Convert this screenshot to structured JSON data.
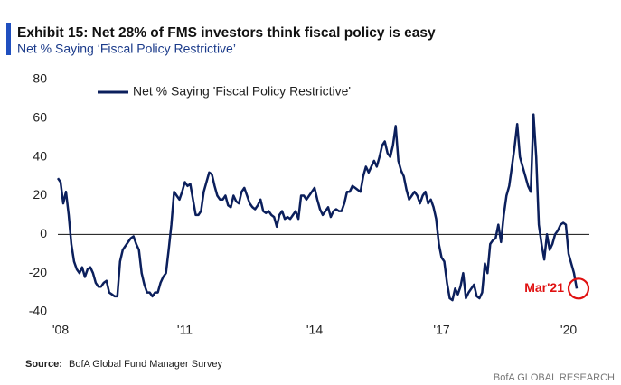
{
  "chart_data": {
    "type": "line",
    "title": "Exhibit 15: Net 28% of FMS investors think fiscal policy is easy",
    "subtitle": "Net % Saying ‘Fiscal Policy Restrictive’",
    "annotation": "Mar'21",
    "source_label": "Source:",
    "source": "BofA Global Fund Manager Survey",
    "footer": "BofA GLOBAL RESEARCH",
    "legend": "top-left",
    "ylim": [
      -40,
      80
    ],
    "yticks": [
      -40,
      -20,
      0,
      20,
      40,
      60,
      80
    ],
    "categories": [
      null,
      "'08",
      null,
      null,
      null,
      null,
      null,
      null,
      null,
      null,
      null,
      null,
      null,
      null,
      null,
      null,
      null,
      null,
      null,
      null,
      null,
      null,
      null,
      null,
      null,
      null,
      null,
      null,
      null,
      null,
      null,
      null,
      null,
      null,
      null,
      null,
      null,
      null,
      null,
      null,
      null,
      null,
      null,
      null,
      null,
      null,
      null,
      "'11",
      null,
      null,
      null,
      null,
      null,
      null,
      null,
      null,
      null,
      null,
      null,
      null,
      null,
      null,
      null,
      null,
      null,
      null,
      null,
      null,
      null,
      null,
      null,
      null,
      null,
      null,
      null,
      null,
      null,
      null,
      null,
      null,
      null,
      null,
      null,
      null,
      null,
      null,
      null,
      null,
      null,
      null,
      null,
      null,
      null,
      null,
      null,
      "'14",
      null,
      null,
      null,
      null,
      null,
      null,
      null,
      null,
      null,
      null,
      null,
      null,
      null,
      null,
      null,
      null,
      null,
      null,
      null,
      null,
      null,
      null,
      null,
      null,
      null,
      null,
      null,
      null,
      null,
      null,
      null,
      null,
      null,
      null,
      null,
      null,
      null,
      null,
      null,
      null,
      null,
      null,
      null,
      null,
      null,
      null,
      "'17",
      null,
      null,
      null,
      null,
      null,
      null,
      null,
      null,
      null,
      null,
      null,
      null,
      null,
      null,
      null,
      null,
      null,
      null,
      null,
      null,
      null,
      null,
      null,
      null,
      null,
      null,
      null,
      null,
      null,
      null,
      null,
      null,
      null,
      null,
      null,
      null,
      null,
      null,
      null,
      null,
      null,
      null,
      null,
      null,
      null,
      null,
      "'20",
      null,
      null,
      null
    ],
    "series": [
      {
        "name": "Net % Saying 'Fiscal Policy Restrictive'",
        "color": "#0b1f5c",
        "values": [
          29,
          27,
          16,
          22,
          10,
          -5,
          -14,
          -18,
          -20,
          -17,
          -22,
          -18,
          -17,
          -20,
          -25,
          -27,
          -27,
          -25,
          -24,
          -30,
          -31,
          -32,
          -32,
          -14,
          -8,
          -6,
          -4,
          -2,
          -1,
          -5,
          -8,
          -20,
          -26,
          -30,
          -30,
          -32,
          -30,
          -30,
          -25,
          -22,
          -20,
          -8,
          5,
          22,
          20,
          18,
          22,
          27,
          25,
          26,
          18,
          10,
          10,
          12,
          22,
          27,
          32,
          31,
          25,
          20,
          18,
          18,
          20,
          15,
          14,
          20,
          17,
          16,
          22,
          24,
          20,
          16,
          14,
          13,
          15,
          18,
          12,
          11,
          12,
          10,
          9,
          4,
          10,
          12,
          8,
          9,
          8,
          10,
          12,
          8,
          20,
          20,
          18,
          20,
          22,
          24,
          18,
          13,
          10,
          12,
          14,
          9,
          12,
          13,
          12,
          12,
          16,
          22,
          22,
          25,
          24,
          23,
          22,
          30,
          35,
          32,
          35,
          38,
          35,
          40,
          46,
          48,
          42,
          40,
          46,
          56,
          38,
          33,
          30,
          23,
          18,
          20,
          22,
          20,
          16,
          20,
          22,
          16,
          18,
          14,
          8,
          -5,
          -12,
          -14,
          -25,
          -33,
          -34,
          -28,
          -31,
          -27,
          -20,
          -33,
          -30,
          -28,
          -26,
          -32,
          -33,
          -30,
          -15,
          -20,
          -5,
          -3,
          -2,
          5,
          -4,
          10,
          20,
          25,
          35,
          45,
          57,
          40,
          35,
          30,
          25,
          22,
          62,
          40,
          5,
          -5,
          -13,
          0,
          -8,
          -5,
          0,
          2,
          5,
          6,
          5,
          -10,
          -15,
          -20,
          -28
        ]
      }
    ]
  }
}
